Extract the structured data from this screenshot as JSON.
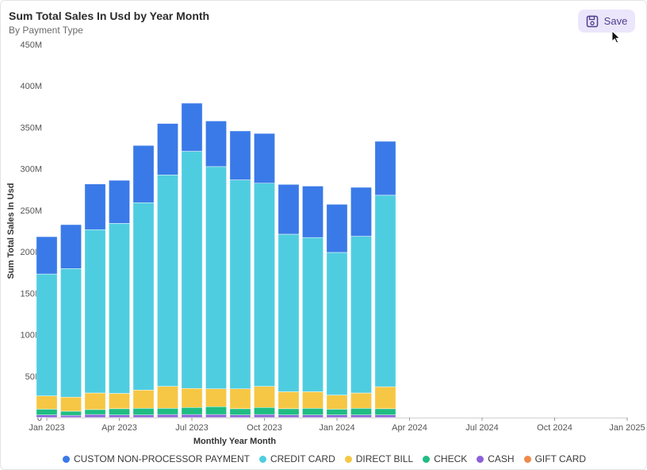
{
  "header": {
    "title": "Sum Total Sales In Usd by Year Month",
    "subtitle": "By Payment Type"
  },
  "toolbar": {
    "save_label": "Save"
  },
  "icons": {
    "save": "floppy-disk-icon",
    "cursor": "mouse-pointer-icon"
  },
  "chart_data": {
    "type": "bar",
    "stacked": true,
    "xlabel": "Monthly Year Month",
    "ylabel": "Sum Total Sales In Usd",
    "ylim": [
      0,
      450000000
    ],
    "yticks": [
      0,
      50000000,
      100000000,
      150000000,
      200000000,
      250000000,
      300000000,
      350000000,
      400000000,
      450000000
    ],
    "ytick_labels": [
      "0",
      "50M",
      "100M",
      "150M",
      "200M",
      "250M",
      "300M",
      "350M",
      "400M",
      "450M"
    ],
    "xlim": [
      "2023-01",
      "2025-01"
    ],
    "xticks": [
      "2023-01",
      "2023-04",
      "2023-07",
      "2023-10",
      "2024-01",
      "2024-04",
      "2024-07",
      "2024-10",
      "2025-01"
    ],
    "xtick_labels": [
      "Jan 2023",
      "Apr 2023",
      "Jul 2023",
      "Oct 2023",
      "Jan 2024",
      "Apr 2024",
      "Jul 2024",
      "Oct 2024",
      "Jan 2025"
    ],
    "categories": [
      "2023-01",
      "2023-02",
      "2023-03",
      "2023-04",
      "2023-05",
      "2023-06",
      "2023-07",
      "2023-08",
      "2023-09",
      "2023-10",
      "2023-11",
      "2023-12",
      "2024-01",
      "2024-02",
      "2024-03"
    ],
    "legend_position": "bottom",
    "series": [
      {
        "name": "GIFT CARD",
        "color": "#f0894a",
        "values": [
          200000,
          200000,
          200000,
          200000,
          200000,
          200000,
          200000,
          200000,
          200000,
          200000,
          200000,
          200000,
          200000,
          200000,
          200000
        ]
      },
      {
        "name": "CASH",
        "color": "#8a62d9",
        "values": [
          3000000,
          2500000,
          3500000,
          3000000,
          3000000,
          3500000,
          3500000,
          3500000,
          3000000,
          3500000,
          3000000,
          3000000,
          3000000,
          3000000,
          3000000
        ]
      },
      {
        "name": "CHECK",
        "color": "#1fbd83",
        "values": [
          7000000,
          5000000,
          6000000,
          7500000,
          8000000,
          7500000,
          8500000,
          9500000,
          7500000,
          8500000,
          7500000,
          8000000,
          7000000,
          8000000,
          7500000
        ]
      },
      {
        "name": "DIRECT BILL",
        "color": "#f6c744",
        "values": [
          16000000,
          17000000,
          20000000,
          18500000,
          22000000,
          26500000,
          23000000,
          21500000,
          24000000,
          25500000,
          20500000,
          20000000,
          17000000,
          18500000,
          26500000
        ]
      },
      {
        "name": "CREDIT CARD",
        "color": "#4fcde0",
        "values": [
          147000000,
          155000000,
          197000000,
          205000000,
          226000000,
          255000000,
          286000000,
          268000000,
          252000000,
          245000000,
          190000000,
          186000000,
          172000000,
          189000000,
          231000000
        ]
      },
      {
        "name": "CUSTOM NON-PROCESSOR PAYMENT",
        "color": "#3a7ae8",
        "values": [
          45000000,
          53000000,
          55000000,
          52000000,
          69000000,
          62000000,
          58000000,
          55000000,
          59000000,
          60000000,
          60000000,
          62000000,
          58000000,
          59000000,
          65000000
        ]
      }
    ],
    "legend": [
      {
        "name": "CUSTOM NON-PROCESSOR PAYMENT",
        "color": "#3a7ae8"
      },
      {
        "name": "CREDIT CARD",
        "color": "#4fcde0"
      },
      {
        "name": "DIRECT BILL",
        "color": "#f6c744"
      },
      {
        "name": "CHECK",
        "color": "#1fbd83"
      },
      {
        "name": "CASH",
        "color": "#8a62d9"
      },
      {
        "name": "GIFT CARD",
        "color": "#f0894a"
      }
    ]
  }
}
